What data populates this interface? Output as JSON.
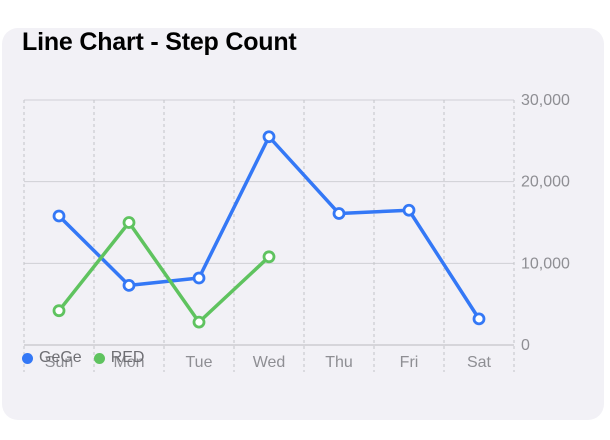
{
  "chart_data": {
    "type": "line",
    "title": "Line Chart - Step Count",
    "categories": [
      "Sun",
      "Mon",
      "Tue",
      "Wed",
      "Thu",
      "Fri",
      "Sat"
    ],
    "series": [
      {
        "name": "GeGe",
        "color": "#3478f6",
        "values": [
          15800,
          7300,
          8200,
          25500,
          16100,
          16500,
          3200
        ]
      },
      {
        "name": "RED",
        "color": "#5fc35f",
        "values": [
          4200,
          15000,
          2800,
          10800,
          null,
          null,
          null
        ]
      }
    ],
    "y_ticks": [
      {
        "value": 0,
        "label": "0"
      },
      {
        "value": 10000,
        "label": "10,000"
      },
      {
        "value": 20000,
        "label": "20,000"
      },
      {
        "value": 30000,
        "label": "30,000"
      }
    ],
    "ylim": [
      0,
      30000
    ],
    "xlabel": "",
    "ylabel": "",
    "grid": true,
    "legend": "bottom-left"
  }
}
